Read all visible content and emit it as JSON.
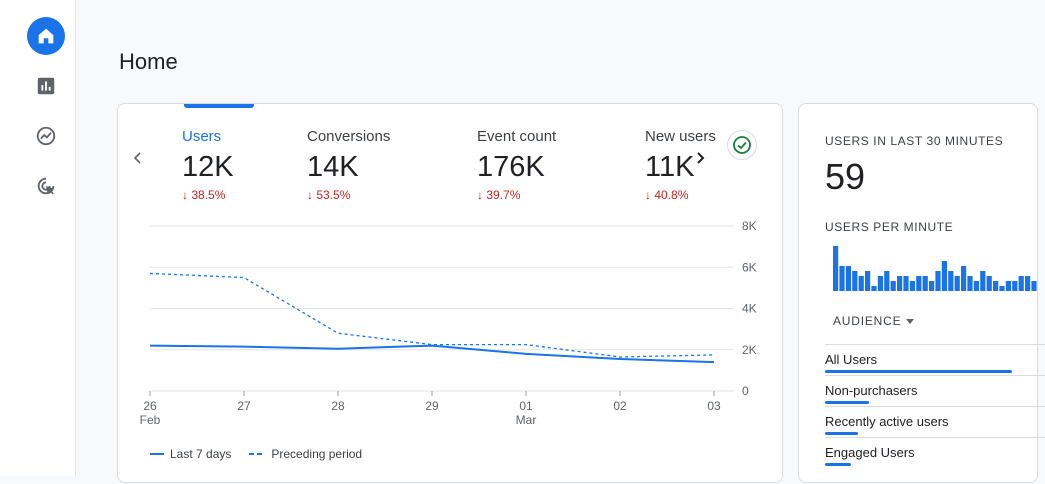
{
  "page": {
    "title": "Home"
  },
  "rail": {
    "items": [
      {
        "name": "home",
        "active": true
      },
      {
        "name": "reports",
        "active": false
      },
      {
        "name": "explore",
        "active": false
      },
      {
        "name": "advertising",
        "active": false
      }
    ]
  },
  "metrics": [
    {
      "label": "Users",
      "value": "12K",
      "change": "↓ 38.5%",
      "active": true
    },
    {
      "label": "Conversions",
      "value": "14K",
      "change": "↓ 53.5%",
      "active": false
    },
    {
      "label": "Event count",
      "value": "176K",
      "change": "↓ 39.7%",
      "active": false
    },
    {
      "label": "New users",
      "value": "11K",
      "change": "↓ 40.8%",
      "active": false
    }
  ],
  "chart_data": {
    "type": "line",
    "x": [
      "26 Feb",
      "27",
      "28",
      "29",
      "01 Mar",
      "02",
      "03"
    ],
    "x_tick_top": [
      "26",
      "27",
      "28",
      "29",
      "01",
      "02",
      "03"
    ],
    "x_tick_bottom": [
      "Feb",
      "",
      "",
      "",
      "Mar",
      "",
      ""
    ],
    "y_ticks": [
      "8K",
      "6K",
      "4K",
      "2K",
      "0"
    ],
    "ylim": [
      0,
      8000
    ],
    "y_axis_side": "right",
    "grid": true,
    "series": [
      {
        "name": "Last 7 days",
        "style": "solid",
        "values": [
          2200,
          2150,
          2050,
          2200,
          1800,
          1550,
          1400
        ]
      },
      {
        "name": "Preceding period",
        "style": "dashed",
        "values": [
          5700,
          5500,
          2800,
          2250,
          2250,
          1650,
          1750
        ]
      }
    ],
    "legend_position": "bottom-left",
    "color": "#1a73e8"
  },
  "realtime": {
    "title": "USERS IN LAST 30 MINUTES",
    "value": "59",
    "per_minute_label": "USERS PER MINUTE",
    "per_minute": [
      9,
      5,
      5,
      4,
      3,
      4,
      1,
      3,
      4,
      2,
      3,
      3,
      2,
      3,
      3,
      2,
      4,
      6,
      4,
      3,
      5,
      3,
      2,
      4,
      3,
      2,
      1,
      2,
      2,
      3,
      3,
      2
    ],
    "audience_label": "AUDIENCE",
    "audiences": [
      {
        "label": "All Users",
        "share": 0.85
      },
      {
        "label": "Non-purchasers",
        "share": 0.2
      },
      {
        "label": "Recently active users",
        "share": 0.15
      },
      {
        "label": "Engaged Users",
        "share": 0.12
      }
    ]
  }
}
